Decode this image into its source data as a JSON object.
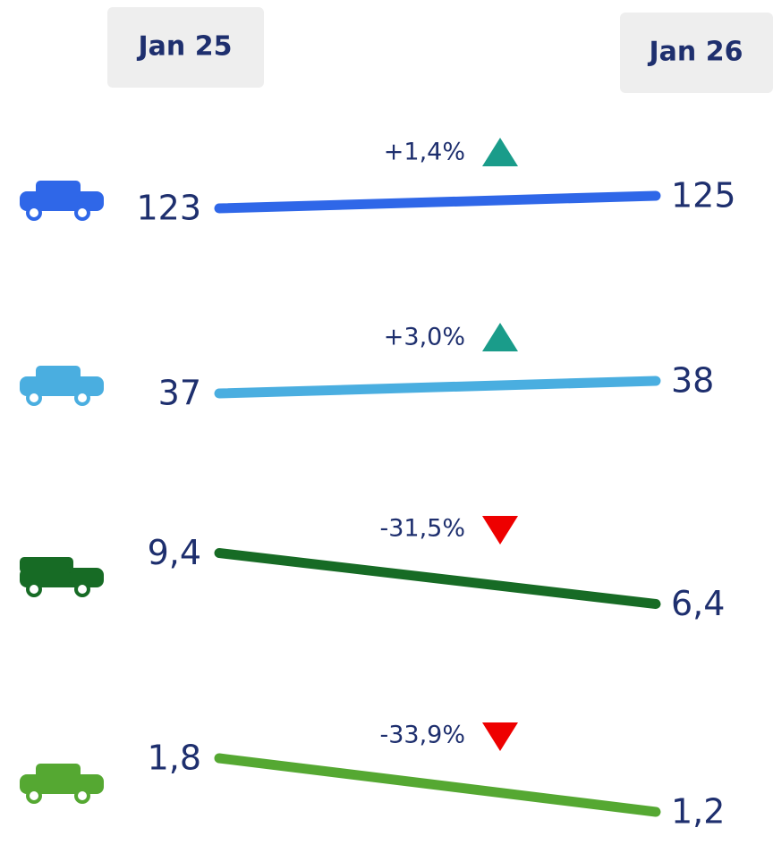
{
  "chart_data": {
    "type": "slope",
    "categories": [
      "Jan 25",
      "Jan 26"
    ],
    "series": [
      {
        "color": "#2f67e8",
        "values": [
          123,
          125
        ],
        "value_labels": [
          "123",
          "125"
        ],
        "change": 1.4,
        "change_label": "+1,4%"
      },
      {
        "color": "#4aaee0",
        "values": [
          37,
          38
        ],
        "value_labels": [
          "37",
          "38"
        ],
        "change": 3.0,
        "change_label": "+3,0%"
      },
      {
        "color": "#176b25",
        "values": [
          9.4,
          6.4
        ],
        "value_labels": [
          "9,4",
          "6,4"
        ],
        "change": -31.5,
        "change_label": "-31,5%"
      },
      {
        "color": "#55a832",
        "values": [
          1.8,
          1.2
        ],
        "value_labels": [
          "1,8",
          "1,2"
        ],
        "change": -33.9,
        "change_label": "-33,9%"
      }
    ]
  }
}
